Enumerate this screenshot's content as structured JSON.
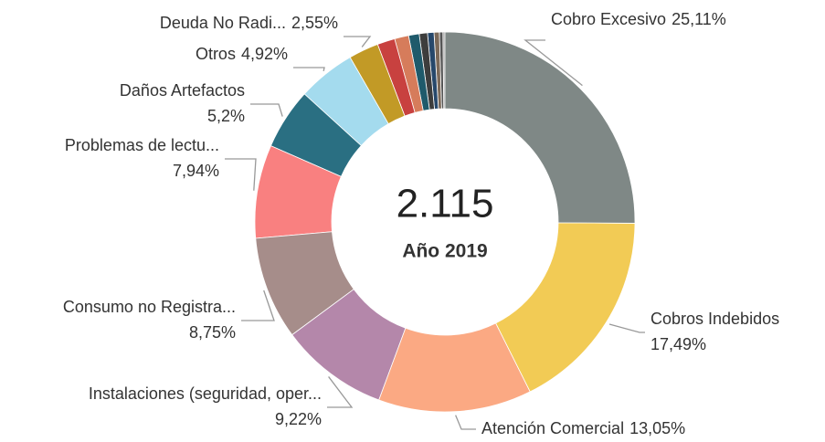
{
  "chart_data": {
    "type": "donut",
    "center_label": "2.115",
    "center_sublabel": "Año 2019",
    "categories": [
      "Cobro Excesivo",
      "Cobros Indebidos",
      "Atención Comercial",
      "Instalaciones (seguridad, oper...",
      "Consumo no Registra...",
      "Problemas de lectu...",
      "Daños Artefactos",
      "Otros",
      "Deuda No Radi...",
      null,
      null,
      null,
      null,
      null,
      null,
      null,
      null
    ],
    "values": [
      25.11,
      17.49,
      13.05,
      9.22,
      8.75,
      7.94,
      5.2,
      4.92,
      2.55,
      1.5,
      1.2,
      0.9,
      0.7,
      0.55,
      0.45,
      0.3,
      0.17
    ],
    "value_labels": [
      "25,11%",
      "17,49%",
      "13,05%",
      "9,22%",
      "8,75%",
      "7,94%",
      "5,2%",
      "4,92%",
      "2,55%",
      null,
      null,
      null,
      null,
      null,
      null,
      null,
      null
    ],
    "colors": [
      "#7f8886",
      "#f2cb55",
      "#fba983",
      "#b487aa",
      "#a68d8a",
      "#f98080",
      "#2a6f82",
      "#a4dbee",
      "#c29a26",
      "#c8413f",
      "#d67c5b",
      "#1f5a6b",
      "#3d3d3d",
      "#27486b",
      "#7c6a5a",
      "#555555",
      "#999999"
    ]
  }
}
